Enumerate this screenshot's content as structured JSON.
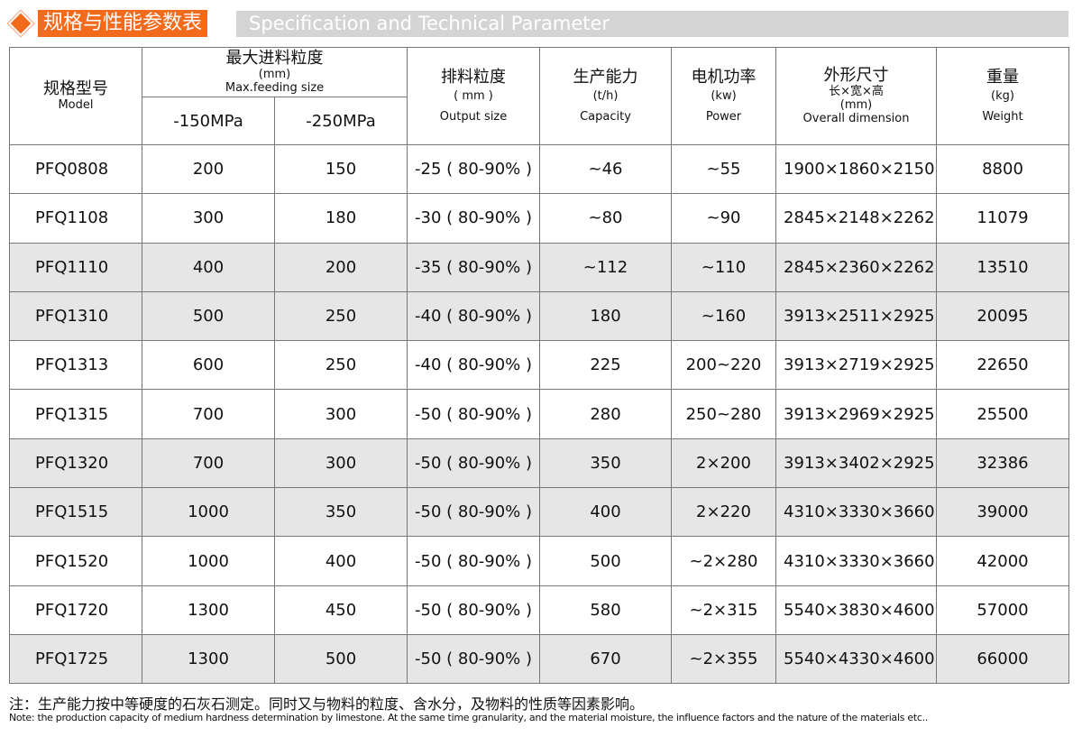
{
  "title": {
    "cn": "规格与性能参数表",
    "en": "Specification and Technical Parameter",
    "accent": "#f26b1d"
  },
  "headers": {
    "model": {
      "cn": "规格型号",
      "en": "Model"
    },
    "feed": {
      "cn": "最大进料粒度",
      "unit": "(mm)",
      "en": "Max.feeding size",
      "sub": [
        "-150MPa",
        "-250MPa"
      ]
    },
    "output": {
      "cn": "排料粒度",
      "unit": "( mm )",
      "en": "Output size"
    },
    "capacity": {
      "cn": "生产能力",
      "unit": "(t/h)",
      "en": "Capacity"
    },
    "power": {
      "cn": "电机功率",
      "unit": "(kw)",
      "en": "Power"
    },
    "dim": {
      "cn": "外形尺寸",
      "cn2": "长×宽×高",
      "unit": "(mm)",
      "en": "Overall dimension"
    },
    "weight": {
      "cn": "重量",
      "unit": "(kg)",
      "en": "Weight"
    }
  },
  "rows": [
    [
      "PFQ0808",
      "200",
      "150",
      "-25 ( 80-90% )",
      "~46",
      "~55",
      "1900×1860×2150",
      "8800"
    ],
    [
      "PFQ1108",
      "300",
      "180",
      "-30 ( 80-90% )",
      "~80",
      "~90",
      "2845×2148×2262",
      "11079"
    ],
    [
      "PFQ1110",
      "400",
      "200",
      "-35 ( 80-90% )",
      "~112",
      "~110",
      "2845×2360×2262",
      "13510"
    ],
    [
      "PFQ1310",
      "500",
      "250",
      "-40 ( 80-90% )",
      "180",
      "~160",
      "3913×2511×2925",
      "20095"
    ],
    [
      "PFQ1313",
      "600",
      "250",
      "-40 ( 80-90% )",
      "225",
      "200~220",
      "3913×2719×2925",
      "22650"
    ],
    [
      "PFQ1315",
      "700",
      "300",
      "-50 ( 80-90% )",
      "280",
      "250~280",
      "3913×2969×2925",
      "25500"
    ],
    [
      "PFQ1320",
      "700",
      "300",
      "-50 ( 80-90% )",
      "350",
      "2×200",
      "3913×3402×2925",
      "32386"
    ],
    [
      "PFQ1515",
      "1000",
      "350",
      "-50 ( 80-90% )",
      "400",
      "2×220",
      "4310×3330×3660",
      "39000"
    ],
    [
      "PFQ1520",
      "1000",
      "400",
      "-50 ( 80-90% )",
      "500",
      "~2×280",
      "4310×3330×3660",
      "42000"
    ],
    [
      "PFQ1720",
      "1300",
      "450",
      "-50 ( 80-90% )",
      "580",
      "~2×315",
      "5540×3830×4600",
      "57000"
    ],
    [
      "PFQ1725",
      "1300",
      "500",
      "-50 ( 80-90% )",
      "670",
      "~2×355",
      "5540×4330×4600",
      "66000"
    ]
  ],
  "notes": {
    "cn": "注：生产能力按中等硬度的石灰石测定。同时又与物料的粒度、含水分，及物料的性质等因素影响。",
    "en": "Note: the production capacity of medium hardness determination by limestone. At the same time granularity, and the material moisture, the influence factors and the nature of the materials etc.."
  }
}
